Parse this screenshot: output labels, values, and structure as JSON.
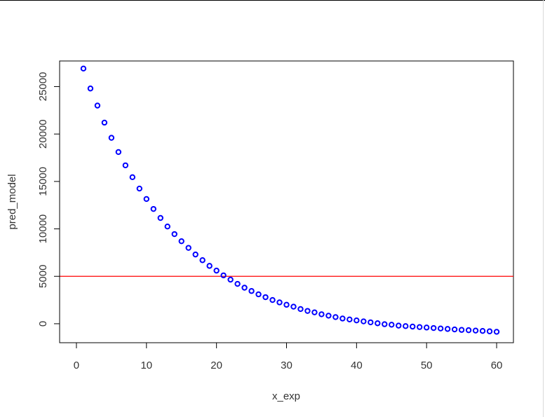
{
  "chart_data": {
    "type": "scatter",
    "xlabel": "x_exp",
    "ylabel": "pred_model",
    "xlim": [
      -2.4,
      62.4
    ],
    "ylim": [
      -2000,
      27700
    ],
    "x_ticks": [
      0,
      10,
      20,
      30,
      40,
      50,
      60
    ],
    "y_ticks": [
      0,
      5000,
      10000,
      15000,
      20000,
      25000
    ],
    "grid": false,
    "point_color": "#0000ff",
    "reference_line": {
      "y": 5000,
      "color": "#ff0000"
    },
    "series": [
      {
        "x": [
          1,
          2,
          3,
          4,
          5,
          6,
          7,
          8,
          9,
          10,
          11,
          12,
          13,
          14,
          15,
          16,
          17,
          18,
          19,
          20,
          21,
          22,
          23,
          24,
          25,
          26,
          27,
          28,
          29,
          30,
          31,
          32,
          33,
          34,
          35,
          36,
          37,
          38,
          39,
          40,
          41,
          42,
          43,
          44,
          45,
          46,
          47,
          48,
          49,
          50,
          51,
          52,
          53,
          54,
          55,
          56,
          57,
          58,
          59,
          60
        ],
        "y": [
          26900,
          24800,
          23000,
          21200,
          19600,
          18100,
          16700,
          15450,
          14250,
          13150,
          12100,
          11150,
          10250,
          9450,
          8700,
          8000,
          7300,
          6700,
          6100,
          5600,
          5100,
          4650,
          4200,
          3800,
          3450,
          3100,
          2800,
          2500,
          2250,
          2000,
          1800,
          1550,
          1350,
          1200,
          1000,
          850,
          700,
          550,
          450,
          350,
          250,
          150,
          50,
          -50,
          -100,
          -200,
          -250,
          -300,
          -350,
          -400,
          -450,
          -500,
          -550,
          -600,
          -650,
          -680,
          -720,
          -760,
          -800,
          -850
        ]
      }
    ]
  }
}
